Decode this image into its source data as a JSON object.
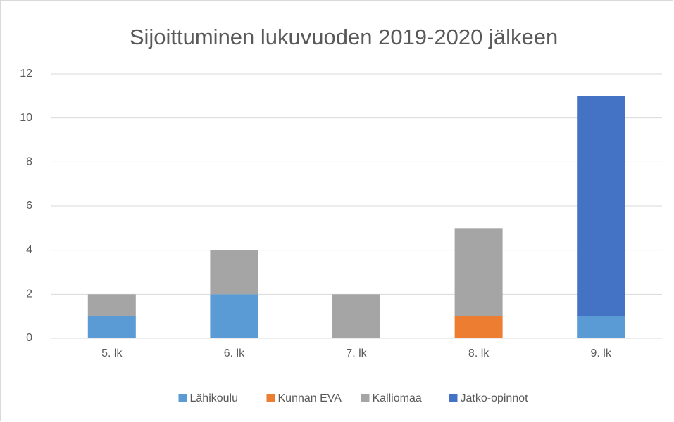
{
  "chart_data": {
    "type": "stacked_bar",
    "title": "Sijoittuminen lukuvuoden 2019-2020 jälkeen",
    "categories": [
      "5. lk",
      "6. lk",
      "7. lk",
      "8. lk",
      "9. lk"
    ],
    "series": [
      {
        "name": "Lähikoulu",
        "color": "#5b9bd5",
        "values": [
          1,
          2,
          0,
          0,
          1
        ]
      },
      {
        "name": "Kunnan EVA",
        "color": "#ed7d31",
        "values": [
          0,
          0,
          0,
          1,
          0
        ]
      },
      {
        "name": "Kalliomaa",
        "color": "#a5a5a5",
        "values": [
          1,
          2,
          2,
          4,
          0
        ]
      },
      {
        "name": "Jatko-opinnot",
        "color": "#4472c4",
        "values": [
          0,
          0,
          0,
          0,
          10
        ]
      }
    ],
    "ylim": [
      0,
      12
    ],
    "yticks": [
      0,
      2,
      4,
      6,
      8,
      10,
      12
    ],
    "grid": true,
    "legend": "bottom"
  }
}
